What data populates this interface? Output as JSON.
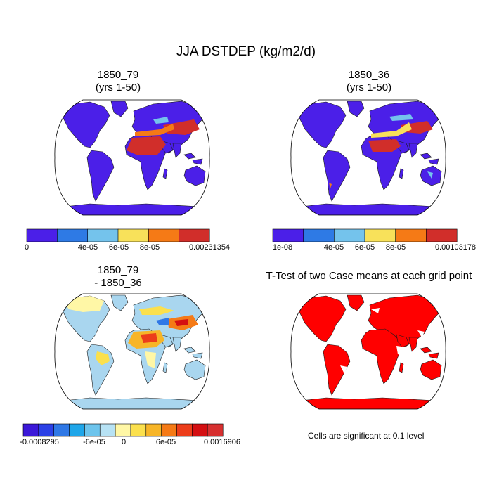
{
  "figure": {
    "title": "JJA DSTDEP (kg/m2/d)",
    "note": "Cells are significant at 0.1 level"
  },
  "panels": [
    {
      "line1": "1850_79",
      "line2": "(yrs 1-50)"
    },
    {
      "line1": "1850_36",
      "line2": "(yrs 1-50)"
    },
    {
      "line1": "1850_79",
      "line2": "- 1850_36"
    },
    {
      "line1": "T-Test of two Case means at each grid point",
      "line2": ""
    }
  ],
  "colorbars": [
    {
      "colors": [
        "#4b1fe8",
        "#2e7ae5",
        "#74c3ec",
        "#f8e15a",
        "#f57a16",
        "#d12e2a"
      ],
      "ticks": [
        "0",
        "4e-05",
        "6e-05",
        "8e-05",
        "0.00231354"
      ]
    },
    {
      "colors": [
        "#4b1fe8",
        "#2e7ae5",
        "#74c3ec",
        "#f8e15a",
        "#f57a16",
        "#d12e2a"
      ],
      "ticks": [
        "1e-08",
        "4e-05",
        "6e-05",
        "8e-05",
        "0.00103178"
      ]
    },
    {
      "colors": [
        "#3b18d8",
        "#2b40e6",
        "#2f78e6",
        "#1fa6e9",
        "#6dc4ec",
        "#b7e2f4",
        "#fff7a6",
        "#fbe04d",
        "#f7b527",
        "#f57a16",
        "#ec3d1a",
        "#d40f12",
        "#d73030"
      ],
      "ticks": [
        "-0.0008295",
        "-6e-05",
        "0",
        "6e-05",
        "0.0016906"
      ]
    }
  ],
  "colors": {
    "base_blue": "#4b1fe8",
    "diff_blue": "#a9d6ef",
    "signif_red": "#ff0000"
  }
}
